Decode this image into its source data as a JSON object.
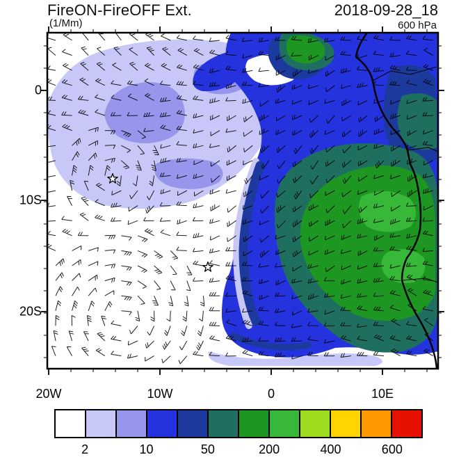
{
  "header": {
    "title": "FireON-FireOFF Ext.",
    "units": "(1/Mm)",
    "datetime": "2018-09-28_18",
    "level": "600 hPa"
  },
  "chart_data": {
    "type": "heatmap",
    "title": "FireON-FireOFF Ext.",
    "subtitle_units": "(1/Mm)",
    "valid_time": "2018-09-28_18",
    "pressure_level": "600 hPa",
    "description": "Filled contour map of aerosol extinction difference (FireON minus FireOFF, 1/Mm) at 600 hPa over the South Atlantic and southwestern Africa, with wind barbs overlaid and the west African coastline drawn",
    "x_axis": {
      "label": "longitude",
      "ticks": [
        "20W",
        "10W",
        "0",
        "10E"
      ],
      "range_approx": [
        "20W",
        "15E"
      ],
      "grid": false
    },
    "y_axis": {
      "label": "latitude",
      "ticks": [
        "0",
        "10S",
        "20S"
      ],
      "range_approx": [
        "5N",
        "25S"
      ],
      "grid": false
    },
    "colorbar": {
      "levels": [
        "2",
        "10",
        "50",
        "200",
        "400",
        "600"
      ],
      "label_cell_boundaries": [
        1,
        3,
        5,
        7,
        9,
        11
      ],
      "colors": [
        "#FFFFFF",
        "#C8C8F8",
        "#9596EC",
        "#2433DD",
        "#1C3A9E",
        "#1F6F60",
        "#1E9622",
        "#38B838",
        "#9FDB1E",
        "#FFD400",
        "#FF9900",
        "#E81000"
      ]
    },
    "overlays": {
      "wind_barbs": true,
      "coastline": "West African coast from Gulf of Guinea to Namibia with country borders",
      "markers": [
        {
          "type": "star",
          "lon": "14.2W",
          "lat": "8.0S"
        },
        {
          "type": "star",
          "lon": "5.7W",
          "lat": "16.1S"
        }
      ]
    },
    "pattern_summary": [
      "Highest values (50-200+, teal/green) in a broad plume over the Angola/Namibia coast and adjacent SE Atlantic",
      "Moderate values (10-50, blue/navy) over the equatorial and eastern tropical Atlantic, arcing southward near 0-5W",
      "Low values (2-10, lavender) across the northwestern part of the domain",
      "Near-zero (white) in the southwestern quadrant with an anticyclonic wind-barb swirl"
    ]
  }
}
